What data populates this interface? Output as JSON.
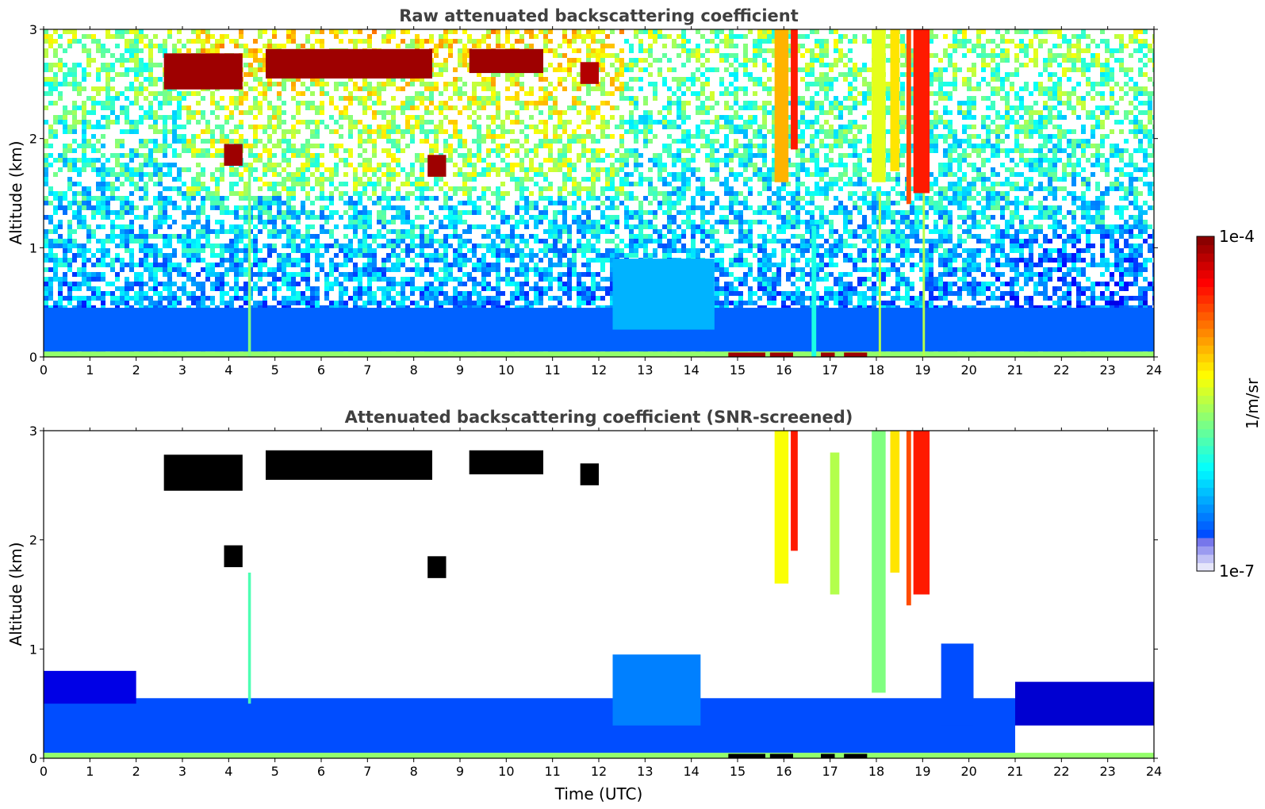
{
  "chart_data": [
    {
      "type": "heatmap",
      "title": "Raw attenuated backscattering coefficient",
      "xlabel": "",
      "ylabel": "Altitude (km)",
      "xlim": [
        0,
        24
      ],
      "ylim": [
        0,
        3
      ],
      "x_ticks": [
        0,
        1,
        2,
        3,
        4,
        5,
        6,
        7,
        8,
        9,
        10,
        11,
        12,
        13,
        14,
        15,
        16,
        17,
        18,
        19,
        20,
        21,
        22,
        23,
        24
      ],
      "y_ticks": [
        0,
        1,
        2,
        3
      ],
      "grid": false,
      "background_noise": true,
      "colorscale": "jet",
      "value_range": [
        "1e-7",
        "1e-4"
      ],
      "layers": [
        {
          "x": [
            0,
            24
          ],
          "y": [
            0,
            0.05
          ],
          "level": 0.52
        },
        {
          "x": [
            2,
            8
          ],
          "y": [
            0.05,
            0.25
          ],
          "level": 0.55
        },
        {
          "x": [
            0,
            24
          ],
          "y": [
            0.05,
            0.45
          ],
          "level": 0.22
        },
        {
          "x": [
            12.3,
            14.5
          ],
          "y": [
            0.25,
            0.9
          ],
          "level": 0.3
        }
      ],
      "clouds": [
        {
          "x": [
            2.6,
            4.3
          ],
          "y": [
            2.45,
            2.78
          ],
          "level": 0.97
        },
        {
          "x": [
            4.8,
            8.4
          ],
          "y": [
            2.55,
            2.82
          ],
          "level": 0.97
        },
        {
          "x": [
            9.2,
            10.8
          ],
          "y": [
            2.6,
            2.82
          ],
          "level": 0.97
        },
        {
          "x": [
            11.6,
            12.0
          ],
          "y": [
            2.5,
            2.7
          ],
          "level": 0.95
        },
        {
          "x": [
            3.9,
            4.3
          ],
          "y": [
            1.75,
            1.95
          ],
          "level": 0.97
        },
        {
          "x": [
            8.3,
            8.7
          ],
          "y": [
            1.65,
            1.85
          ],
          "level": 0.97
        },
        {
          "x": [
            14.8,
            15.6
          ],
          "y": [
            0,
            0.04
          ],
          "level": 0.97
        },
        {
          "x": [
            15.7,
            16.2
          ],
          "y": [
            0,
            0.04
          ],
          "level": 0.97
        },
        {
          "x": [
            16.8,
            17.1
          ],
          "y": [
            0,
            0.04
          ],
          "level": 0.97
        },
        {
          "x": [
            17.3,
            17.8
          ],
          "y": [
            0,
            0.04
          ],
          "level": 0.97
        }
      ],
      "precip_streaks": [
        {
          "x": [
            15.8,
            16.1
          ],
          "y": [
            1.6,
            3.0
          ],
          "level": 0.7
        },
        {
          "x": [
            16.15,
            16.3
          ],
          "y": [
            1.9,
            3.0
          ],
          "level": 0.85
        },
        {
          "x": [
            17.9,
            18.2
          ],
          "y": [
            1.6,
            3.0
          ],
          "level": 0.6
        },
        {
          "x": [
            18.3,
            18.5
          ],
          "y": [
            1.7,
            3.0
          ],
          "level": 0.65
        },
        {
          "x": [
            18.65,
            18.75
          ],
          "y": [
            1.4,
            3.0
          ],
          "level": 0.8
        },
        {
          "x": [
            18.8,
            19.15
          ],
          "y": [
            1.5,
            3.0
          ],
          "level": 0.85
        },
        {
          "x": [
            4.42,
            4.48
          ],
          "y": [
            0,
            1.7
          ],
          "level": 0.5
        },
        {
          "x": [
            18.05,
            18.1
          ],
          "y": [
            0,
            1.5
          ],
          "level": 0.55
        },
        {
          "x": [
            19.0,
            19.05
          ],
          "y": [
            0,
            1.5
          ],
          "level": 0.55
        },
        {
          "x": [
            16.6,
            16.7
          ],
          "y": [
            0,
            1.2
          ],
          "level": 0.4
        }
      ]
    },
    {
      "type": "heatmap",
      "title": "Attenuated backscattering coefficient (SNR-screened)",
      "xlabel": "Time (UTC)",
      "ylabel": "Altitude (km)",
      "xlim": [
        0,
        24
      ],
      "ylim": [
        0,
        3
      ],
      "x_ticks": [
        0,
        1,
        2,
        3,
        4,
        5,
        6,
        7,
        8,
        9,
        10,
        11,
        12,
        13,
        14,
        15,
        16,
        17,
        18,
        19,
        20,
        21,
        22,
        23,
        24
      ],
      "y_ticks": [
        0,
        1,
        2,
        3
      ],
      "grid": false,
      "background_noise": false,
      "colorscale": "jet",
      "value_range": [
        "1e-7",
        "1e-4"
      ],
      "layers": [
        {
          "x": [
            0,
            24
          ],
          "y": [
            0,
            0.05
          ],
          "level": 0.52
        },
        {
          "x": [
            2,
            8
          ],
          "y": [
            0.05,
            0.25
          ],
          "level": 0.55
        },
        {
          "x": [
            0,
            21
          ],
          "y": [
            0.05,
            0.55
          ],
          "level": 0.2
        },
        {
          "x": [
            12.3,
            14.2
          ],
          "y": [
            0.3,
            0.95
          ],
          "level": 0.25
        },
        {
          "x": [
            19.4,
            20.1
          ],
          "y": [
            0.3,
            1.05
          ],
          "level": 0.2
        },
        {
          "x": [
            0,
            2
          ],
          "y": [
            0.5,
            0.8
          ],
          "level": 0.1
        },
        {
          "x": [
            21,
            24
          ],
          "y": [
            0.3,
            0.7
          ],
          "level": 0.08
        }
      ],
      "clouds": [
        {
          "x": [
            2.6,
            4.3
          ],
          "y": [
            2.45,
            2.78
          ],
          "level": 1.0
        },
        {
          "x": [
            4.8,
            8.4
          ],
          "y": [
            2.55,
            2.82
          ],
          "level": 1.0
        },
        {
          "x": [
            9.2,
            10.8
          ],
          "y": [
            2.6,
            2.82
          ],
          "level": 1.0
        },
        {
          "x": [
            11.6,
            12.0
          ],
          "y": [
            2.5,
            2.7
          ],
          "level": 1.0
        },
        {
          "x": [
            3.9,
            4.3
          ],
          "y": [
            1.75,
            1.95
          ],
          "level": 1.0
        },
        {
          "x": [
            8.3,
            8.7
          ],
          "y": [
            1.65,
            1.85
          ],
          "level": 1.0
        },
        {
          "x": [
            14.8,
            15.6
          ],
          "y": [
            0,
            0.04
          ],
          "level": 1.0
        },
        {
          "x": [
            15.7,
            16.2
          ],
          "y": [
            0,
            0.04
          ],
          "level": 1.0
        },
        {
          "x": [
            16.8,
            17.1
          ],
          "y": [
            0,
            0.04
          ],
          "level": 1.0
        },
        {
          "x": [
            17.3,
            17.8
          ],
          "y": [
            0,
            0.04
          ],
          "level": 1.0
        }
      ],
      "precip_streaks": [
        {
          "x": [
            15.8,
            16.1
          ],
          "y": [
            1.6,
            3.0
          ],
          "level": 0.62
        },
        {
          "x": [
            16.15,
            16.3
          ],
          "y": [
            1.9,
            3.0
          ],
          "level": 0.85
        },
        {
          "x": [
            17.9,
            18.2
          ],
          "y": [
            0.6,
            3.0
          ],
          "level": 0.5
        },
        {
          "x": [
            18.3,
            18.5
          ],
          "y": [
            1.7,
            3.0
          ],
          "level": 0.65
        },
        {
          "x": [
            18.65,
            18.75
          ],
          "y": [
            1.4,
            3.0
          ],
          "level": 0.8
        },
        {
          "x": [
            18.8,
            19.15
          ],
          "y": [
            1.5,
            3.0
          ],
          "level": 0.85
        },
        {
          "x": [
            4.42,
            4.48
          ],
          "y": [
            0.5,
            1.7
          ],
          "level": 0.45
        },
        {
          "x": [
            17.0,
            17.2
          ],
          "y": [
            1.5,
            2.8
          ],
          "level": 0.55
        }
      ]
    }
  ],
  "colorbar": {
    "top_label": "1e-4",
    "bottom_label": "1e-7",
    "units": "1/m/sr",
    "colormap": "jet",
    "levels": 40
  }
}
